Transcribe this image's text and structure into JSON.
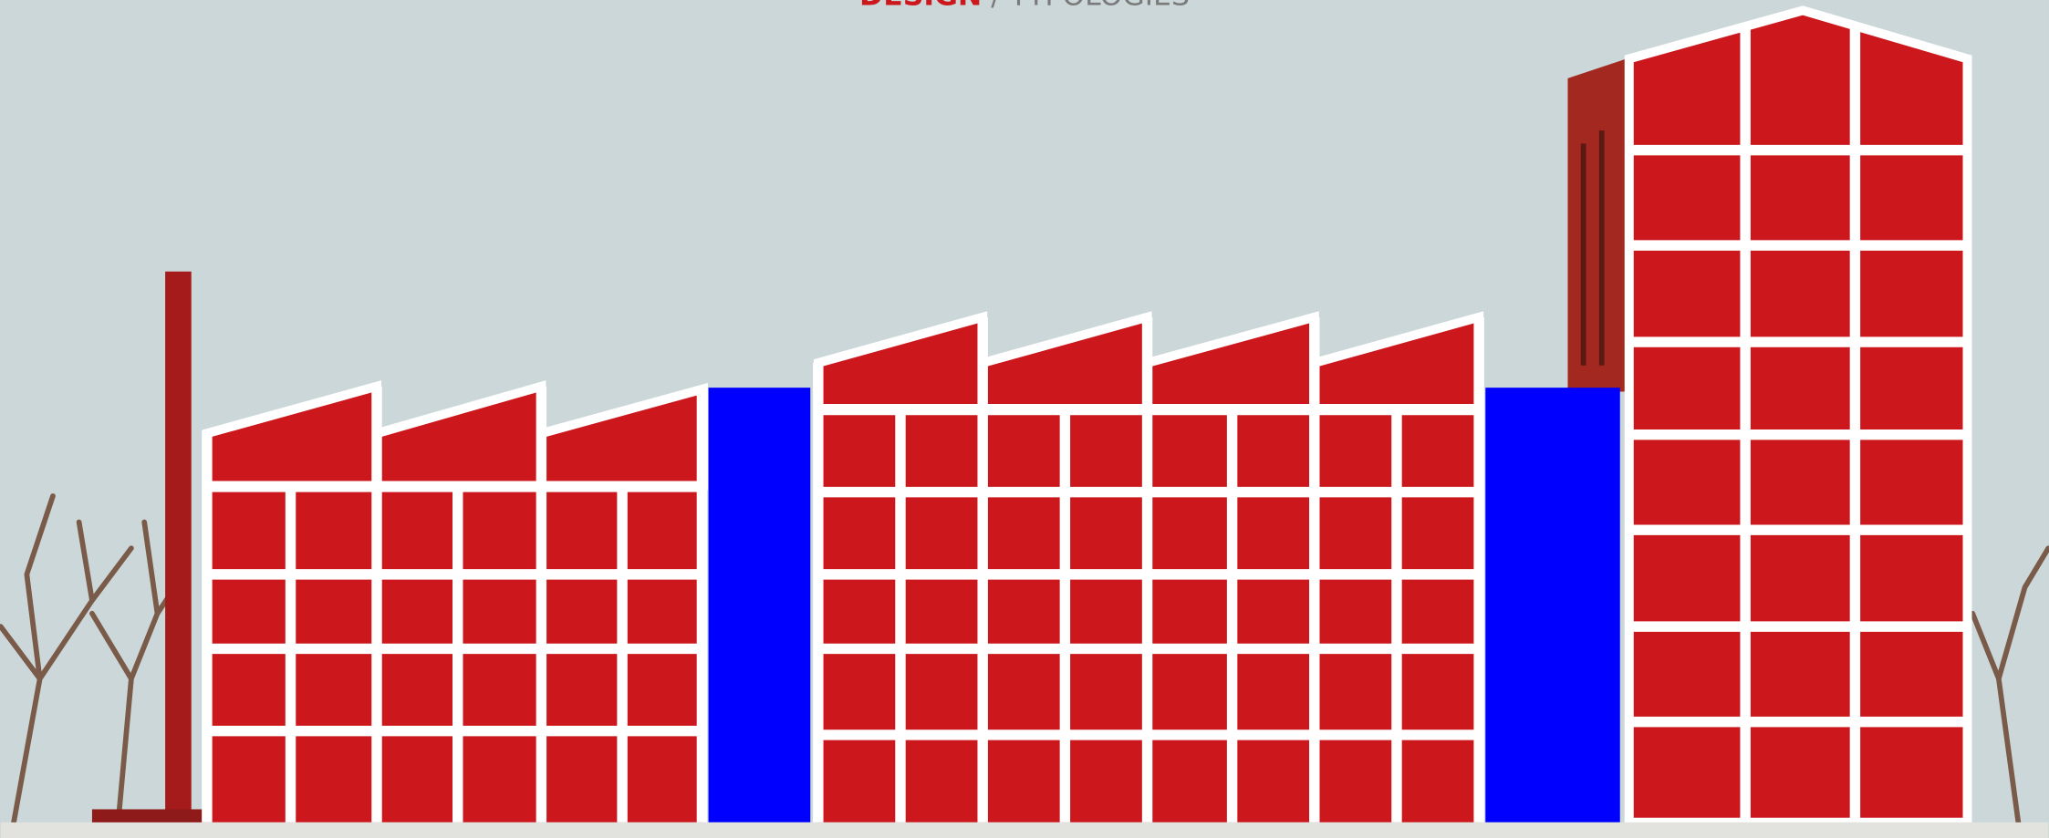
{
  "header": {
    "section": "DESIGN",
    "separator": "/",
    "title": "TYPOLOGIES"
  }
}
